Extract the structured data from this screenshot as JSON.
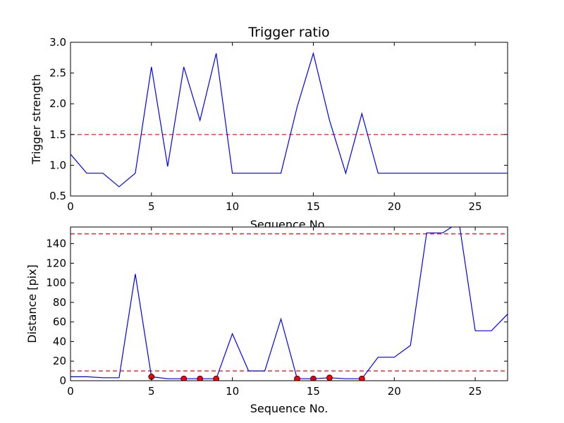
{
  "chart_data": [
    {
      "type": "line",
      "title": "Trigger ratio",
      "xlabel": "Sequence No.",
      "ylabel": "Trigger strength",
      "xlim": [
        0,
        27
      ],
      "ylim": [
        0.5,
        3.0
      ],
      "xticks": [
        0,
        5,
        10,
        15,
        20,
        25
      ],
      "yticks": [
        0.5,
        1.0,
        1.5,
        2.0,
        2.5,
        3.0
      ],
      "xtick_labels": [
        "0",
        "5",
        "10",
        "15",
        "20",
        "25"
      ],
      "ytick_labels": [
        "0.5",
        "1.0",
        "1.5",
        "2.0",
        "2.5",
        "3.0"
      ],
      "grid": false,
      "series": [
        {
          "color": "#0000ff",
          "x": [
            0,
            1,
            2,
            3,
            4,
            5,
            6,
            7,
            8,
            9,
            10,
            11,
            12,
            13,
            14,
            15,
            16,
            17,
            18,
            19,
            20,
            21,
            22,
            23,
            24,
            25,
            26,
            27
          ],
          "values": [
            1.18,
            0.87,
            0.87,
            0.65,
            0.87,
            2.6,
            0.98,
            2.6,
            1.73,
            2.82,
            0.87,
            0.87,
            0.87,
            0.87,
            1.95,
            2.82,
            1.73,
            0.87,
            1.84,
            0.87,
            0.87,
            0.87,
            0.87,
            0.87,
            0.87,
            0.87,
            0.87,
            0.87
          ]
        }
      ],
      "hlines": [
        {
          "y": 1.5,
          "color": "#ff0000",
          "style": "dashed"
        }
      ]
    },
    {
      "type": "line",
      "title": "",
      "xlabel": "Sequence No.",
      "ylabel": "Distance [pix]",
      "xlim": [
        0,
        27
      ],
      "ylim": [
        0,
        157
      ],
      "xticks": [
        0,
        5,
        10,
        15,
        20,
        25
      ],
      "yticks": [
        0,
        20,
        40,
        60,
        80,
        100,
        120,
        140
      ],
      "xtick_labels": [
        "0",
        "5",
        "10",
        "15",
        "20",
        "25"
      ],
      "ytick_labels": [
        "0",
        "20",
        "40",
        "60",
        "80",
        "100",
        "120",
        "140"
      ],
      "grid": false,
      "series": [
        {
          "color": "#0000ff",
          "x": [
            0,
            1,
            2,
            3,
            4,
            5,
            6,
            7,
            8,
            9,
            10,
            11,
            12,
            13,
            14,
            15,
            16,
            17,
            18,
            19,
            20,
            21,
            22,
            23,
            24,
            25,
            26,
            27
          ],
          "values": [
            4,
            4,
            3,
            3,
            109,
            4,
            2,
            2,
            2,
            2,
            48,
            10,
            10,
            63,
            2,
            2,
            3,
            2,
            2,
            24,
            24,
            36,
            151,
            151,
            162,
            51,
            51,
            68
          ]
        }
      ],
      "markers": {
        "color": "#ff0000",
        "x": [
          5,
          7,
          8,
          9,
          14,
          15,
          16,
          18
        ],
        "y": [
          4,
          2,
          2,
          2,
          2,
          2,
          3,
          2
        ]
      },
      "hlines": [
        {
          "y": 150,
          "color": "#ff0000",
          "style": "dashed"
        },
        {
          "y": 10,
          "color": "#ff0000",
          "style": "dashed"
        }
      ]
    }
  ]
}
